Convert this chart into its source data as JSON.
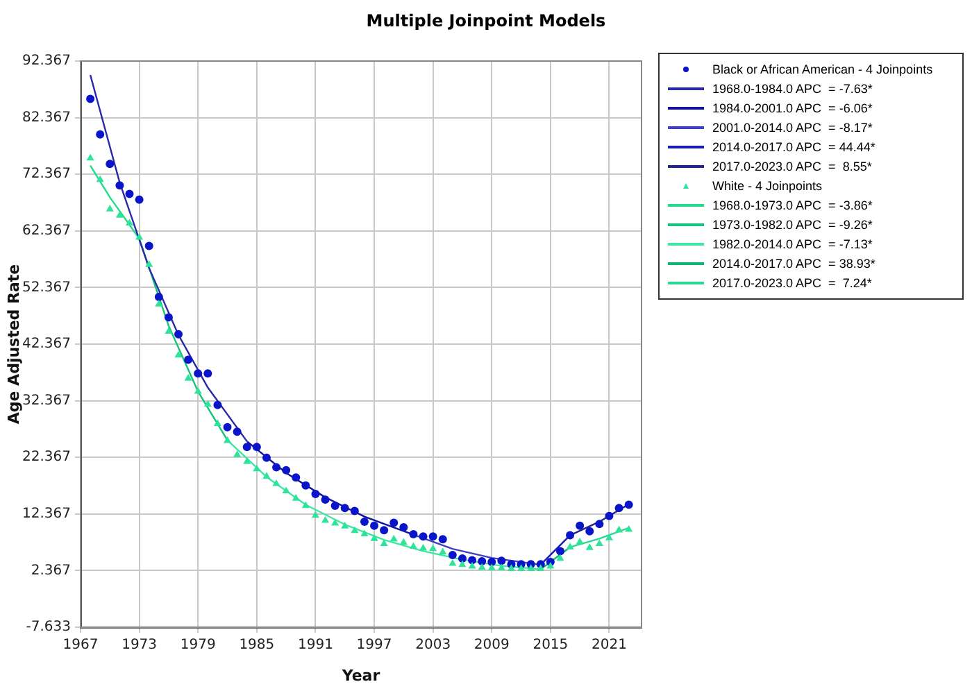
{
  "chart_data": {
    "type": "scatter",
    "title": "Multiple Joinpoint Models",
    "xlabel": "Year",
    "ylabel": "Age Adjusted Rate",
    "xlim": [
      1967,
      2024.3
    ],
    "xticks": [
      1967,
      1973,
      1979,
      1985,
      1991,
      1997,
      2003,
      2009,
      2015,
      2021
    ],
    "ylim": [
      -7.633,
      92.367
    ],
    "yticks": [
      -7.633,
      2.367,
      12.367,
      22.367,
      32.367,
      42.367,
      52.367,
      62.367,
      72.367,
      82.367,
      92.367
    ],
    "grid": true,
    "legend": "right",
    "line_style": "solid",
    "series": [
      {
        "name": "Black or African American - 4 Joinpoints",
        "type": "scatter",
        "marker": "circle",
        "color": "#0a14c8",
        "x": [
          1968,
          1969,
          1970,
          1971,
          1972,
          1973,
          1974,
          1975,
          1976,
          1977,
          1978,
          1979,
          1980,
          1981,
          1982,
          1983,
          1984,
          1985,
          1986,
          1987,
          1988,
          1989,
          1990,
          1991,
          1992,
          1993,
          1994,
          1995,
          1996,
          1997,
          1998,
          1999,
          2000,
          2001,
          2002,
          2003,
          2004,
          2005,
          2006,
          2007,
          2008,
          2009,
          2010,
          2011,
          2012,
          2013,
          2014,
          2015,
          2016,
          2017,
          2018,
          2019,
          2020,
          2021,
          2022,
          2023
        ],
        "values": [
          85.7,
          79.4,
          74.2,
          70.4,
          68.9,
          67.9,
          59.7,
          50.7,
          47.1,
          44.1,
          39.6,
          37.2,
          37.2,
          31.6,
          27.7,
          26.9,
          24.2,
          24.2,
          22.3,
          20.6,
          20.1,
          18.8,
          17.4,
          15.9,
          14.9,
          13.8,
          13.4,
          12.9,
          11.0,
          10.3,
          9.5,
          10.8,
          10.0,
          8.8,
          8.4,
          8.4,
          7.9,
          5.1,
          4.5,
          4.2,
          4.0,
          3.9,
          4.1,
          3.5,
          3.5,
          3.5,
          3.5,
          3.9,
          5.8,
          8.6,
          10.3,
          9.3,
          10.6,
          12.0,
          13.4,
          14.0
        ]
      },
      {
        "name": "1968.0-1984.0 APC  = -7.63*",
        "type": "line",
        "marker": "none",
        "color": "#2a2aa8",
        "x": [
          1968,
          1971,
          1974,
          1977,
          1980,
          1984
        ],
        "values": [
          89.9,
          70.9,
          55.8,
          44.0,
          34.7,
          25.2
        ]
      },
      {
        "name": "1984.0-2001.0 APC  = -6.06*",
        "type": "line",
        "marker": "none",
        "color": "#12129a",
        "x": [
          1984,
          1988,
          1992,
          1996,
          2001
        ],
        "values": [
          25.2,
          19.6,
          15.3,
          11.9,
          8.7
        ]
      },
      {
        "name": "2001.0-2014.0 APC  = -8.17*",
        "type": "line",
        "marker": "none",
        "color": "#4040c0",
        "x": [
          2001,
          2005,
          2009,
          2014
        ],
        "values": [
          8.7,
          6.2,
          4.6,
          3.4
        ]
      },
      {
        "name": "2014.0-2017.0 APC  = 44.44*",
        "type": "line",
        "marker": "none",
        "color": "#1a1ab8",
        "x": [
          2014,
          2017
        ],
        "values": [
          3.4,
          8.6
        ]
      },
      {
        "name": "2017.0-2023.0 APC  =  8.55*",
        "type": "line",
        "marker": "none",
        "color": "#242488",
        "x": [
          2017,
          2020,
          2023
        ],
        "values": [
          8.6,
          11.0,
          14.1
        ]
      },
      {
        "name": "White - 4 Joinpoints",
        "type": "scatter",
        "marker": "triangle",
        "color": "#2ee39a",
        "x": [
          1968,
          1969,
          1970,
          1971,
          1972,
          1973,
          1974,
          1975,
          1976,
          1977,
          1978,
          1979,
          1980,
          1981,
          1982,
          1983,
          1984,
          1985,
          1986,
          1987,
          1988,
          1989,
          1990,
          1991,
          1992,
          1993,
          1994,
          1995,
          1996,
          1997,
          1998,
          1999,
          2000,
          2001,
          2002,
          2003,
          2004,
          2005,
          2006,
          2007,
          2008,
          2009,
          2010,
          2011,
          2012,
          2013,
          2014,
          2015,
          2016,
          2017,
          2018,
          2019,
          2020,
          2021,
          2022,
          2023
        ],
        "values": [
          75.2,
          71.4,
          66.2,
          65.1,
          63.7,
          61.2,
          56.4,
          49.4,
          44.6,
          40.4,
          36.3,
          34.0,
          31.7,
          28.3,
          25.3,
          22.8,
          21.6,
          20.3,
          19.0,
          17.7,
          16.4,
          15.1,
          13.8,
          12.1,
          11.2,
          10.7,
          10.2,
          9.4,
          8.8,
          8.0,
          7.1,
          7.9,
          7.3,
          6.6,
          6.3,
          6.2,
          5.6,
          3.6,
          3.4,
          3.1,
          2.9,
          2.8,
          2.8,
          2.7,
          2.7,
          2.7,
          2.7,
          3.1,
          4.5,
          6.5,
          7.4,
          6.4,
          7.1,
          8.1,
          9.5,
          9.6
        ]
      },
      {
        "name": "1968.0-1973.0 APC  = -3.86*",
        "type": "line",
        "marker": "none",
        "color": "#22dc8c",
        "x": [
          1968,
          1970,
          1973
        ],
        "values": [
          73.9,
          68.3,
          61.0
        ]
      },
      {
        "name": "1973.0-1982.0 APC  = -9.26*",
        "type": "line",
        "marker": "none",
        "color": "#14c47a",
        "x": [
          1973,
          1976,
          1979,
          1982
        ],
        "values": [
          61.0,
          45.6,
          34.0,
          25.4
        ]
      },
      {
        "name": "1982.0-2014.0 APC  = -7.13*",
        "type": "line",
        "marker": "none",
        "color": "#3ee8a2",
        "x": [
          1982,
          1986,
          1990,
          1994,
          1998,
          2002,
          2006,
          2010,
          2014
        ],
        "values": [
          25.4,
          18.9,
          14.0,
          10.5,
          7.8,
          5.8,
          4.3,
          3.2,
          2.6
        ]
      },
      {
        "name": "2014.0-2017.0 APC  = 38.93*",
        "type": "line",
        "marker": "none",
        "color": "#0fb870",
        "x": [
          2014,
          2017
        ],
        "values": [
          2.6,
          6.5
        ]
      },
      {
        "name": "2017.0-2023.0 APC  =  7.24*",
        "type": "line",
        "marker": "none",
        "color": "#2ad896",
        "x": [
          2017,
          2020,
          2023
        ],
        "values": [
          6.5,
          8.0,
          9.9
        ]
      }
    ]
  }
}
